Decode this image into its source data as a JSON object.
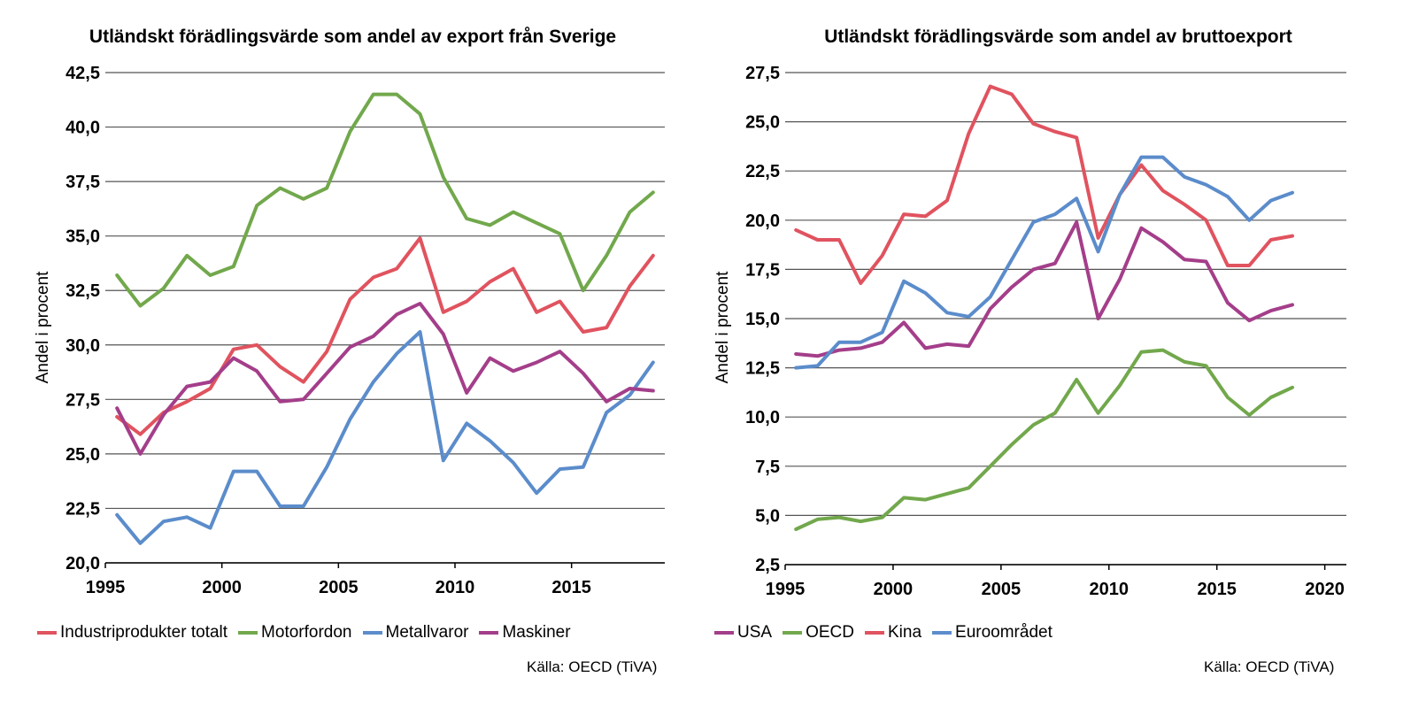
{
  "chart_data": [
    {
      "type": "line",
      "title": "Utländskt förädlingsvärde som andel av export från Sverige",
      "ylabel": "Andel i procent",
      "xlabel": "",
      "xlim": [
        1995,
        2019
      ],
      "ylim": [
        20,
        42.5
      ],
      "xticks": [
        "1995",
        "2000",
        "2005",
        "2010",
        "2015"
      ],
      "yticks": [
        "20,0",
        "22,5",
        "25,0",
        "27,5",
        "30,0",
        "32,5",
        "35,0",
        "37,5",
        "40,0",
        "42,5"
      ],
      "x": [
        1995.5,
        1996.5,
        1997.5,
        1998.5,
        1999.5,
        2000.5,
        2001.5,
        2002.5,
        2003.5,
        2004.5,
        2005.5,
        2006.5,
        2007.5,
        2008.5,
        2009.5,
        2010.5,
        2011.5,
        2012.5,
        2013.5,
        2014.5,
        2015.5,
        2016.5,
        2017.5,
        2018.5
      ],
      "grid": true,
      "legend_position": "bottom",
      "series": [
        {
          "name": "Industriprodukter totalt",
          "color": "#e0535f",
          "values": [
            26.7,
            25.9,
            26.9,
            27.4,
            28.0,
            29.8,
            30.0,
            29.0,
            28.3,
            29.7,
            32.1,
            33.1,
            33.5,
            34.9,
            31.5,
            32.0,
            32.9,
            33.5,
            31.5,
            32.0,
            30.6,
            30.8,
            32.7,
            34.1
          ]
        },
        {
          "name": "Motorfordon",
          "color": "#72a84c",
          "values": [
            33.2,
            31.8,
            32.6,
            34.1,
            33.2,
            33.6,
            36.4,
            37.2,
            36.7,
            37.2,
            39.8,
            41.5,
            41.5,
            40.6,
            37.7,
            35.8,
            35.5,
            36.1,
            35.6,
            35.1,
            32.5,
            34.1,
            36.1,
            37.0
          ]
        },
        {
          "name": "Metallvaror",
          "color": "#5b8ccb",
          "values": [
            22.2,
            20.9,
            21.9,
            22.1,
            21.6,
            24.2,
            24.2,
            22.6,
            22.6,
            24.4,
            26.6,
            28.3,
            29.6,
            30.6,
            24.7,
            26.4,
            25.6,
            24.6,
            23.2,
            24.3,
            24.4,
            26.9,
            27.7,
            29.2
          ]
        },
        {
          "name": "Maskiner",
          "color": "#a43e8a",
          "values": [
            27.1,
            25.0,
            26.8,
            28.1,
            28.3,
            29.4,
            28.8,
            27.4,
            27.5,
            28.7,
            29.9,
            30.4,
            31.4,
            31.9,
            30.5,
            27.8,
            29.4,
            28.8,
            29.2,
            29.7,
            28.7,
            27.4,
            28.0,
            27.9
          ]
        }
      ],
      "source": "Källa: OECD (TiVA)"
    },
    {
      "type": "line",
      "title": "Utländskt förädlingsvärde som andel av bruttoexport",
      "ylabel": "Andel i procent",
      "xlabel": "",
      "xlim": [
        1995,
        2021
      ],
      "ylim": [
        2.5,
        27.5
      ],
      "xticks": [
        "1995",
        "2000",
        "2005",
        "2010",
        "2015",
        "2020"
      ],
      "yticks": [
        "2,5",
        "5,0",
        "7,5",
        "10,0",
        "12,5",
        "15,0",
        "17,5",
        "20,0",
        "22,5",
        "25,0",
        "27,5"
      ],
      "x": [
        1995.5,
        1996.5,
        1997.5,
        1998.5,
        1999.5,
        2000.5,
        2001.5,
        2002.5,
        2003.5,
        2004.5,
        2005.5,
        2006.5,
        2007.5,
        2008.5,
        2009.5,
        2010.5,
        2011.5,
        2012.5,
        2013.5,
        2014.5,
        2015.5,
        2016.5,
        2017.5,
        2018.5
      ],
      "grid": true,
      "legend_position": "bottom",
      "series": [
        {
          "name": "USA",
          "color": "#a43e8a",
          "values": [
            13.2,
            13.1,
            13.4,
            13.5,
            13.8,
            14.8,
            13.5,
            13.7,
            13.6,
            15.5,
            16.6,
            17.5,
            17.8,
            19.9,
            15.0,
            17.0,
            19.6,
            18.9,
            18.0,
            17.9,
            15.8,
            14.9,
            15.4,
            15.7
          ]
        },
        {
          "name": "OECD",
          "color": "#72a84c",
          "values": [
            4.3,
            4.8,
            4.9,
            4.7,
            4.9,
            5.9,
            5.8,
            6.1,
            6.4,
            7.5,
            8.6,
            9.6,
            10.2,
            11.9,
            10.2,
            11.6,
            13.3,
            13.4,
            12.8,
            12.6,
            11.0,
            10.1,
            11.0,
            11.5
          ]
        },
        {
          "name": "Kina",
          "color": "#e0535f",
          "values": [
            19.5,
            19.0,
            19.0,
            16.8,
            18.2,
            20.3,
            20.2,
            21.0,
            24.4,
            26.8,
            26.4,
            24.9,
            24.5,
            24.2,
            19.1,
            21.3,
            22.8,
            21.5,
            20.8,
            20.0,
            17.7,
            17.7,
            19.0,
            19.2
          ]
        },
        {
          "name": "Euroområdet",
          "color": "#5b8ccb",
          "values": [
            12.5,
            12.6,
            13.8,
            13.8,
            14.3,
            16.9,
            16.3,
            15.3,
            15.1,
            16.1,
            18.0,
            19.9,
            20.3,
            21.1,
            18.4,
            21.3,
            23.2,
            23.2,
            22.2,
            21.8,
            21.2,
            20.0,
            21.0,
            21.4
          ]
        }
      ],
      "source": "Källa: OECD (TiVA)"
    }
  ]
}
